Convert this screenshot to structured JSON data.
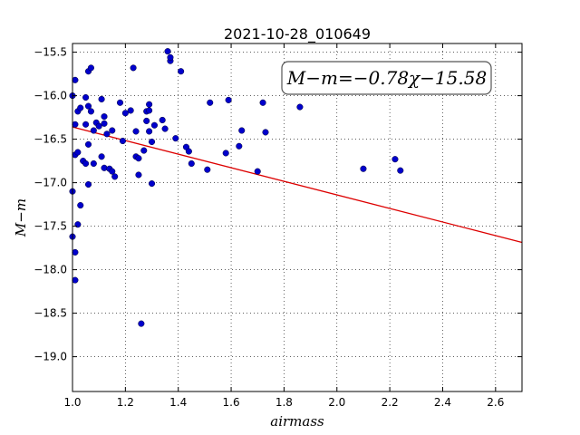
{
  "chart_data": {
    "type": "scatter",
    "title": "2021-10-28_010649",
    "xlabel": "airmass",
    "ylabel": "M−m",
    "xlim": [
      1.0,
      2.7
    ],
    "ylim": [
      -19.4,
      -15.4
    ],
    "y_inverted": true,
    "grid": true,
    "x_ticks": [
      "1.0",
      "1.2",
      "1.4",
      "1.6",
      "1.8",
      "2.0",
      "2.2",
      "2.4",
      "2.6"
    ],
    "y_ticks": [
      "−15.5",
      "−16.0",
      "−16.5",
      "−17.0",
      "−17.5",
      "−18.0",
      "−18.5",
      "−19.0"
    ],
    "annotation": "M−m=−0.78χ−15.58",
    "fit": {
      "slope": -0.78,
      "intercept": -15.58,
      "color": "#dd0000"
    },
    "point_color": "#0000cc",
    "points": [
      [
        1.0,
        -16.0
      ],
      [
        1.01,
        -15.82
      ],
      [
        1.01,
        -16.33
      ],
      [
        1.02,
        -16.18
      ],
      [
        1.03,
        -16.14
      ],
      [
        1.01,
        -16.68
      ],
      [
        1.02,
        -16.65
      ],
      [
        1.0,
        -17.1
      ],
      [
        1.0,
        -17.62
      ],
      [
        1.01,
        -17.8
      ],
      [
        1.01,
        -18.12
      ],
      [
        1.02,
        -17.48
      ],
      [
        1.03,
        -17.26
      ],
      [
        1.04,
        -16.75
      ],
      [
        1.05,
        -16.02
      ],
      [
        1.05,
        -16.33
      ],
      [
        1.06,
        -16.12
      ],
      [
        1.06,
        -15.72
      ],
      [
        1.07,
        -15.68
      ],
      [
        1.07,
        -16.18
      ],
      [
        1.08,
        -16.4
      ],
      [
        1.09,
        -16.31
      ],
      [
        1.05,
        -16.78
      ],
      [
        1.06,
        -16.56
      ],
      [
        1.06,
        -17.02
      ],
      [
        1.08,
        -16.78
      ],
      [
        1.1,
        -16.35
      ],
      [
        1.11,
        -16.04
      ],
      [
        1.12,
        -16.24
      ],
      [
        1.12,
        -16.32
      ],
      [
        1.11,
        -16.7
      ],
      [
        1.12,
        -16.83
      ],
      [
        1.13,
        -16.44
      ],
      [
        1.14,
        -16.84
      ],
      [
        1.15,
        -16.4
      ],
      [
        1.15,
        -16.87
      ],
      [
        1.16,
        -16.93
      ],
      [
        1.18,
        -16.08
      ],
      [
        1.19,
        -16.52
      ],
      [
        1.2,
        -16.2
      ],
      [
        1.22,
        -16.17
      ],
      [
        1.23,
        -15.68
      ],
      [
        1.24,
        -16.41
      ],
      [
        1.24,
        -16.7
      ],
      [
        1.25,
        -16.72
      ],
      [
        1.25,
        -16.91
      ],
      [
        1.26,
        -18.62
      ],
      [
        1.27,
        -16.63
      ],
      [
        1.28,
        -16.18
      ],
      [
        1.28,
        -16.29
      ],
      [
        1.29,
        -16.1
      ],
      [
        1.29,
        -16.17
      ],
      [
        1.29,
        -16.41
      ],
      [
        1.3,
        -16.53
      ],
      [
        1.3,
        -17.01
      ],
      [
        1.31,
        -16.34
      ],
      [
        1.34,
        -16.28
      ],
      [
        1.35,
        -16.38
      ],
      [
        1.36,
        -15.49
      ],
      [
        1.37,
        -15.6
      ],
      [
        1.37,
        -15.56
      ],
      [
        1.39,
        -16.49
      ],
      [
        1.41,
        -15.72
      ],
      [
        1.43,
        -16.59
      ],
      [
        1.44,
        -16.64
      ],
      [
        1.45,
        -16.78
      ],
      [
        1.51,
        -16.85
      ],
      [
        1.52,
        -16.08
      ],
      [
        1.58,
        -16.66
      ],
      [
        1.59,
        -16.05
      ],
      [
        1.63,
        -16.58
      ],
      [
        1.64,
        -16.4
      ],
      [
        1.7,
        -16.87
      ],
      [
        1.72,
        -16.08
      ],
      [
        1.73,
        -16.42
      ],
      [
        1.86,
        -16.13
      ],
      [
        2.1,
        -16.84
      ],
      [
        2.22,
        -16.73
      ],
      [
        2.24,
        -16.86
      ]
    ]
  }
}
